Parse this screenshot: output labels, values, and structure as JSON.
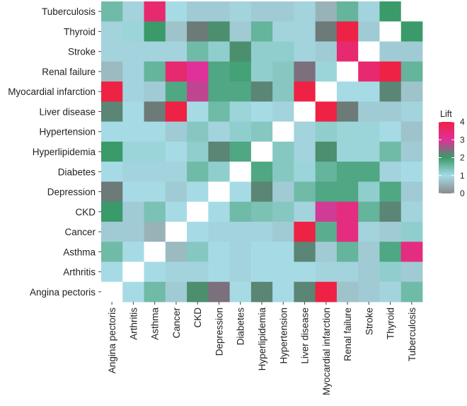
{
  "chart_data": {
    "type": "heatmap",
    "title": "",
    "xlabel": "",
    "ylabel": "",
    "x_categories": [
      "Angina pectoris",
      "Arthritis",
      "Asthma",
      "Cancer",
      "CKD",
      "Depression",
      "Diabetes",
      "Hyperlipidemia",
      "Hypertension",
      "Liver disease",
      "Myocardial infarction",
      "Renal failure",
      "Stroke",
      "Thyroid",
      "Tuberculosis"
    ],
    "y_categories": [
      "Tuberculosis",
      "Thyroid",
      "Stroke",
      "Renal failure",
      "Myocardial infarction",
      "Liver disease",
      "Hypertension",
      "Hyperlipidemia",
      "Diabetes",
      "Depression",
      "CKD",
      "Cancer",
      "Asthma",
      "Arthritis",
      "Angina pectoris"
    ],
    "values": [
      [
        1.5,
        0.9,
        3.5,
        1.0,
        0.8,
        0.8,
        0.9,
        0.8,
        0.8,
        0.9,
        0.5,
        1.6,
        0.9,
        2.0,
        null
      ],
      [
        0.9,
        1.1,
        2.0,
        0.7,
        2.3,
        2.1,
        0.8,
        1.6,
        0.9,
        0.9,
        2.3,
        4.0,
        0.8,
        null,
        2.0
      ],
      [
        0.9,
        0.9,
        0.9,
        0.9,
        1.5,
        1.2,
        2.1,
        1.2,
        1.2,
        0.9,
        0.8,
        3.5,
        null,
        0.8,
        0.8
      ],
      [
        0.6,
        0.9,
        1.6,
        3.5,
        3.0,
        1.8,
        1.9,
        1.2,
        1.3,
        2.4,
        1.1,
        null,
        3.5,
        4.0,
        1.6
      ],
      [
        4.0,
        0.9,
        0.8,
        1.8,
        2.8,
        1.8,
        1.8,
        2.2,
        1.3,
        4.0,
        null,
        1.0,
        1.0,
        2.2,
        0.7
      ],
      [
        2.2,
        1.0,
        2.3,
        4.0,
        1.0,
        1.5,
        1.1,
        1.0,
        0.9,
        null,
        4.0,
        2.3,
        0.8,
        0.8,
        0.9
      ],
      [
        1.0,
        1.0,
        1.0,
        0.8,
        1.3,
        0.9,
        1.2,
        1.3,
        null,
        0.9,
        1.2,
        1.1,
        1.1,
        1.0,
        0.7
      ],
      [
        2.0,
        1.1,
        1.1,
        1.0,
        1.2,
        2.2,
        1.8,
        null,
        1.3,
        0.9,
        2.1,
        1.1,
        1.1,
        1.5,
        0.8
      ],
      [
        1.0,
        0.9,
        0.9,
        0.9,
        1.5,
        1.2,
        null,
        1.8,
        1.3,
        1.1,
        1.6,
        1.8,
        1.8,
        0.9,
        1.0
      ],
      [
        2.3,
        1.0,
        1.0,
        0.8,
        1.0,
        null,
        1.0,
        2.2,
        0.8,
        1.5,
        1.8,
        1.8,
        1.2,
        1.8,
        0.8
      ],
      [
        2.0,
        0.8,
        1.4,
        1.0,
        null,
        1.0,
        1.5,
        1.4,
        1.3,
        0.9,
        2.9,
        3.3,
        1.6,
        2.2,
        0.9
      ],
      [
        0.8,
        0.8,
        0.5,
        null,
        1.0,
        0.9,
        0.9,
        0.9,
        0.8,
        4.0,
        1.7,
        3.3,
        0.9,
        0.8,
        1.2
      ],
      [
        1.5,
        1.0,
        null,
        0.6,
        1.3,
        1.0,
        0.9,
        1.0,
        1.0,
        2.2,
        0.8,
        1.6,
        0.8,
        1.8,
        3.3
      ],
      [
        1.0,
        null,
        1.0,
        0.9,
        0.9,
        1.0,
        0.9,
        1.0,
        1.0,
        1.0,
        0.9,
        0.9,
        0.8,
        1.2,
        0.8
      ],
      [
        null,
        1.0,
        1.5,
        0.8,
        2.1,
        2.4,
        1.0,
        2.2,
        1.0,
        2.2,
        4.0,
        0.7,
        0.8,
        0.9,
        1.5
      ]
    ],
    "legend": {
      "title": "Lift",
      "min": 0,
      "max": 4,
      "ticks": [
        "0",
        "1",
        "2",
        "3",
        "4"
      ]
    },
    "colors": {
      "missing": "#ffffff",
      "scale": [
        {
          "value": 0,
          "color": "#8a8a8a"
        },
        {
          "value": 1,
          "color": "#a6dbe6"
        },
        {
          "value": 2,
          "color": "#3a9a6a"
        },
        {
          "value": 3,
          "color": "#e0309a"
        },
        {
          "value": 4,
          "color": "#ee2244"
        }
      ]
    }
  }
}
